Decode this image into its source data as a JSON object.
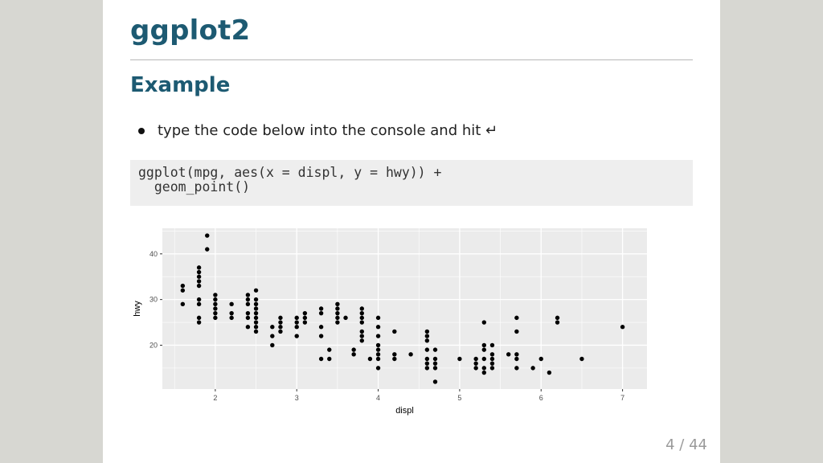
{
  "slide": {
    "title": "ggplot2",
    "subtitle": "Example",
    "bullet": "type the code below into the console and hit ↵",
    "code": "ggplot(mpg, aes(x = displ, y = hwy)) +\n  geom_point()",
    "page": "4 / 44"
  },
  "colors": {
    "heading": "#1d5a72",
    "panel": "#ebebeb",
    "grid": "#ffffff",
    "point": "#000000"
  },
  "chart_data": {
    "type": "scatter",
    "xlabel": "displ",
    "ylabel": "hwy",
    "xlim": [
      1.35,
      7.3
    ],
    "ylim": [
      10.4,
      45.6
    ],
    "xticks": [
      2,
      3,
      4,
      5,
      6,
      7
    ],
    "yticks": [
      20,
      30,
      40
    ],
    "grid": true,
    "points": [
      [
        1.6,
        33
      ],
      [
        1.6,
        32
      ],
      [
        1.6,
        29
      ],
      [
        1.8,
        37
      ],
      [
        1.8,
        36
      ],
      [
        1.8,
        35
      ],
      [
        1.8,
        34
      ],
      [
        1.8,
        33
      ],
      [
        1.8,
        30
      ],
      [
        1.8,
        29
      ],
      [
        1.8,
        26
      ],
      [
        1.8,
        25
      ],
      [
        1.9,
        44
      ],
      [
        1.9,
        41
      ],
      [
        2.0,
        31
      ],
      [
        2.0,
        30
      ],
      [
        2.0,
        29
      ],
      [
        2.0,
        28
      ],
      [
        2.0,
        27
      ],
      [
        2.0,
        26
      ],
      [
        2.2,
        29
      ],
      [
        2.2,
        27
      ],
      [
        2.2,
        26
      ],
      [
        2.4,
        31
      ],
      [
        2.4,
        30
      ],
      [
        2.4,
        29
      ],
      [
        2.4,
        27
      ],
      [
        2.4,
        26
      ],
      [
        2.4,
        24
      ],
      [
        2.5,
        32
      ],
      [
        2.5,
        30
      ],
      [
        2.5,
        29
      ],
      [
        2.5,
        28
      ],
      [
        2.5,
        27
      ],
      [
        2.5,
        26
      ],
      [
        2.5,
        25
      ],
      [
        2.5,
        24
      ],
      [
        2.5,
        23
      ],
      [
        2.7,
        24
      ],
      [
        2.7,
        22
      ],
      [
        2.7,
        20
      ],
      [
        2.8,
        26
      ],
      [
        2.8,
        25
      ],
      [
        2.8,
        24
      ],
      [
        2.8,
        23
      ],
      [
        3.0,
        26
      ],
      [
        3.0,
        25
      ],
      [
        3.0,
        24
      ],
      [
        3.0,
        22
      ],
      [
        3.1,
        27
      ],
      [
        3.1,
        26
      ],
      [
        3.1,
        25
      ],
      [
        3.3,
        28
      ],
      [
        3.3,
        27
      ],
      [
        3.3,
        24
      ],
      [
        3.3,
        22
      ],
      [
        3.3,
        17
      ],
      [
        3.4,
        19
      ],
      [
        3.4,
        17
      ],
      [
        3.5,
        29
      ],
      [
        3.5,
        28
      ],
      [
        3.5,
        27
      ],
      [
        3.5,
        26
      ],
      [
        3.5,
        25
      ],
      [
        3.6,
        26
      ],
      [
        3.7,
        19
      ],
      [
        3.7,
        18
      ],
      [
        3.8,
        28
      ],
      [
        3.8,
        27
      ],
      [
        3.8,
        26
      ],
      [
        3.8,
        25
      ],
      [
        3.8,
        23
      ],
      [
        3.8,
        22
      ],
      [
        3.8,
        21
      ],
      [
        3.9,
        17
      ],
      [
        4.0,
        26
      ],
      [
        4.0,
        24
      ],
      [
        4.0,
        22
      ],
      [
        4.0,
        20
      ],
      [
        4.0,
        19
      ],
      [
        4.0,
        18
      ],
      [
        4.0,
        17
      ],
      [
        4.0,
        15
      ],
      [
        4.2,
        23
      ],
      [
        4.2,
        18
      ],
      [
        4.2,
        17
      ],
      [
        4.4,
        18
      ],
      [
        4.6,
        23
      ],
      [
        4.6,
        22
      ],
      [
        4.6,
        21
      ],
      [
        4.6,
        19
      ],
      [
        4.6,
        17
      ],
      [
        4.6,
        16
      ],
      [
        4.6,
        15
      ],
      [
        4.7,
        19
      ],
      [
        4.7,
        17
      ],
      [
        4.7,
        16
      ],
      [
        4.7,
        15
      ],
      [
        4.7,
        12
      ],
      [
        5.0,
        17
      ],
      [
        5.2,
        17
      ],
      [
        5.2,
        16
      ],
      [
        5.2,
        15
      ],
      [
        5.3,
        25
      ],
      [
        5.3,
        20
      ],
      [
        5.3,
        19
      ],
      [
        5.3,
        17
      ],
      [
        5.3,
        15
      ],
      [
        5.3,
        14
      ],
      [
        5.4,
        20
      ],
      [
        5.4,
        18
      ],
      [
        5.4,
        17
      ],
      [
        5.4,
        16
      ],
      [
        5.4,
        15
      ],
      [
        5.6,
        18
      ],
      [
        5.7,
        26
      ],
      [
        5.7,
        23
      ],
      [
        5.7,
        18
      ],
      [
        5.7,
        17
      ],
      [
        5.7,
        15
      ],
      [
        5.9,
        15
      ],
      [
        6.0,
        17
      ],
      [
        6.1,
        14
      ],
      [
        6.2,
        26
      ],
      [
        6.2,
        25
      ],
      [
        6.5,
        17
      ],
      [
        7.0,
        24
      ]
    ]
  }
}
